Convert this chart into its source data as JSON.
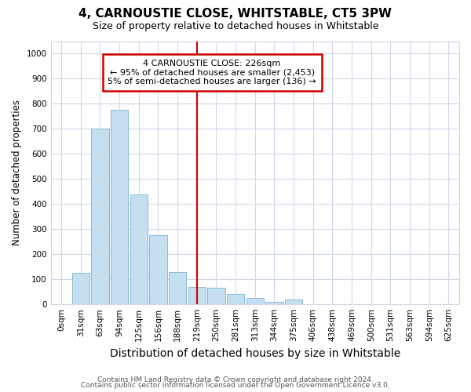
{
  "title": "4, CARNOUSTIE CLOSE, WHITSTABLE, CT5 3PW",
  "subtitle": "Size of property relative to detached houses in Whitstable",
  "xlabel": "Distribution of detached houses by size in Whitstable",
  "ylabel": "Number of detached properties",
  "footer_line1": "Contains HM Land Registry data © Crown copyright and database right 2024.",
  "footer_line2": "Contains public sector information licensed under the Open Government Licence v3.0.",
  "categories": [
    "0sqm",
    "31sqm",
    "63sqm",
    "94sqm",
    "125sqm",
    "156sqm",
    "188sqm",
    "219sqm",
    "250sqm",
    "281sqm",
    "313sqm",
    "344sqm",
    "375sqm",
    "406sqm",
    "438sqm",
    "469sqm",
    "500sqm",
    "531sqm",
    "563sqm",
    "594sqm",
    "625sqm"
  ],
  "values": [
    0,
    125,
    700,
    775,
    440,
    275,
    130,
    70,
    65,
    40,
    25,
    10,
    20,
    0,
    0,
    0,
    0,
    0,
    0,
    0,
    0
  ],
  "bar_color": "#c5dff0",
  "bar_edge_color": "#7ab3d4",
  "vline_index": 7,
  "vline_color": "#cc0000",
  "annotation_line1": "4 CARNOUSTIE CLOSE: 226sqm",
  "annotation_line2": "← 95% of detached houses are smaller (2,453)",
  "annotation_line3": "5% of semi-detached houses are larger (136) →",
  "annotation_box_color": "#cc0000",
  "ylim": [
    0,
    1050
  ],
  "yticks": [
    0,
    100,
    200,
    300,
    400,
    500,
    600,
    700,
    800,
    900,
    1000
  ],
  "figsize": [
    6.0,
    5.0
  ],
  "dpi": 100,
  "bg_color": "#ffffff",
  "grid_color": "#d0d8e8",
  "title_fontsize": 11,
  "subtitle_fontsize": 9,
  "tick_fontsize": 7.5,
  "ylabel_fontsize": 8.5,
  "xlabel_fontsize": 10
}
